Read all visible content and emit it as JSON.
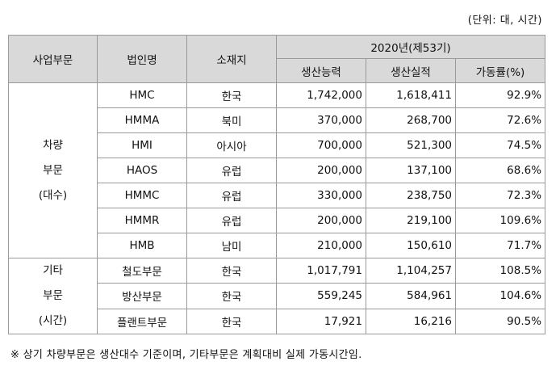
{
  "unit_note": "(단위: 대, 시간)",
  "header": {
    "division": "사업부문",
    "entity": "법인명",
    "location": "소재지",
    "year": "2020년(제53기)",
    "capacity": "생산능력",
    "actual": "생산실적",
    "utilization": "가동률(%)"
  },
  "groups": [
    {
      "label_lines": [
        "차량",
        "부문",
        "(대수)"
      ],
      "rows": [
        {
          "entity": "HMC",
          "location": "한국",
          "capacity": "1,742,000",
          "actual": "1,618,411",
          "utilization": "92.9%"
        },
        {
          "entity": "HMMA",
          "location": "북미",
          "capacity": "370,000",
          "actual": "268,700",
          "utilization": "72.6%"
        },
        {
          "entity": "HMI",
          "location": "아시아",
          "capacity": "700,000",
          "actual": "521,300",
          "utilization": "74.5%"
        },
        {
          "entity": "HAOS",
          "location": "유럽",
          "capacity": "200,000",
          "actual": "137,100",
          "utilization": "68.6%"
        },
        {
          "entity": "HMMC",
          "location": "유럽",
          "capacity": "330,000",
          "actual": "238,750",
          "utilization": "72.3%"
        },
        {
          "entity": "HMMR",
          "location": "유럽",
          "capacity": "200,000",
          "actual": "219,100",
          "utilization": "109.6%"
        },
        {
          "entity": "HMB",
          "location": "남미",
          "capacity": "210,000",
          "actual": "150,610",
          "utilization": "71.7%"
        }
      ]
    },
    {
      "label_lines": [
        "기타",
        "부문",
        "(시간)"
      ],
      "rows": [
        {
          "entity": "철도부문",
          "location": "한국",
          "capacity": "1,017,791",
          "actual": "1,104,257",
          "utilization": "108.5%"
        },
        {
          "entity": "방산부문",
          "location": "한국",
          "capacity": "559,245",
          "actual": "584,961",
          "utilization": "104.6%"
        },
        {
          "entity": "플랜트부문",
          "location": "한국",
          "capacity": "17,921",
          "actual": "16,216",
          "utilization": "90.5%"
        }
      ]
    }
  ],
  "footnote": "※ 상기 차량부문은 생산대수 기준이며, 기타부문은 계획대비 실제 가동시간임."
}
